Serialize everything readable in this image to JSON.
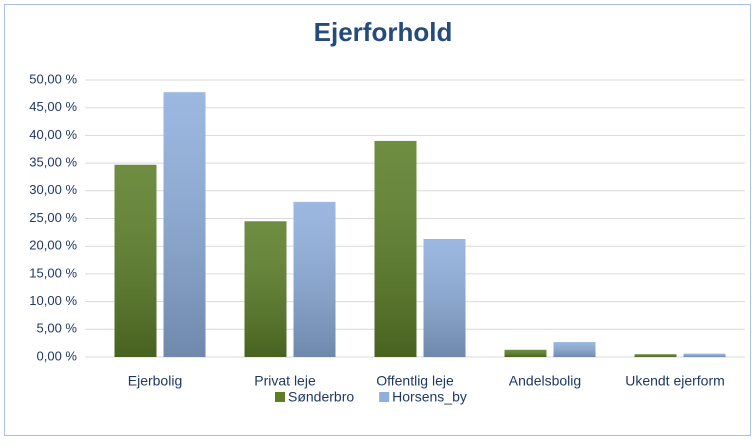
{
  "chart_data": {
    "type": "bar",
    "title": "Ejerforhold",
    "categories": [
      "Ejerbolig",
      "Privat leje",
      "Offentlig leje",
      "Andelsbolig",
      "Ukendt ejerform"
    ],
    "series": [
      {
        "name": "Sønderbro",
        "color": "#5b7e27",
        "values": [
          34.7,
          24.5,
          39.0,
          1.3,
          0.5
        ]
      },
      {
        "name": "Horsens_by",
        "color": "#8eaedc",
        "values": [
          47.8,
          28.0,
          21.3,
          2.7,
          0.6
        ]
      }
    ],
    "ylim": [
      0,
      50
    ],
    "yticks": [
      {
        "value": 0,
        "label": "0,00 %"
      },
      {
        "value": 5,
        "label": "5,00 %"
      },
      {
        "value": 10,
        "label": "10,00 %"
      },
      {
        "value": 15,
        "label": "15,00 %"
      },
      {
        "value": 20,
        "label": "20,00 %"
      },
      {
        "value": 25,
        "label": "25,00 %"
      },
      {
        "value": 30,
        "label": "30,00 %"
      },
      {
        "value": 35,
        "label": "35,00 %"
      },
      {
        "value": 40,
        "label": "40,00 %"
      },
      {
        "value": 45,
        "label": "45,00 %"
      },
      {
        "value": 50,
        "label": "50,00 %"
      }
    ],
    "grid": true,
    "legend": "bottom"
  }
}
